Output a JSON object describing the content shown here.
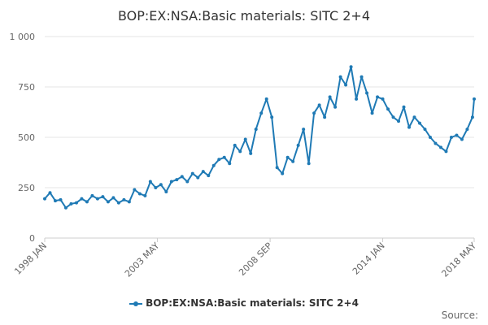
{
  "chart_data": {
    "type": "line",
    "title": "BOP:EX:NSA:Basic materials: SITC 2+4",
    "xlabel": "",
    "ylabel": "",
    "ylim": [
      0,
      1000
    ],
    "yticks": [
      "0",
      "250",
      "500",
      "750",
      "1 000"
    ],
    "ytick_values": [
      0,
      250,
      500,
      750,
      1000
    ],
    "xticks": [
      "1998 JAN",
      "2003 MAY",
      "2008 SEP",
      "2014 JAN",
      "2018 MAY"
    ],
    "x_range": [
      "1998-01",
      "2018-05"
    ],
    "series": [
      {
        "name": "BOP:EX:NSA:Basic materials: SITC 2+4",
        "color": "#1f7ab5",
        "x": [
          1998.0,
          1998.25,
          1998.5,
          1998.75,
          1999.0,
          1999.25,
          1999.5,
          1999.75,
          2000.0,
          2000.25,
          2000.5,
          2000.75,
          2001.0,
          2001.25,
          2001.5,
          2001.75,
          2002.0,
          2002.25,
          2002.5,
          2002.75,
          2003.0,
          2003.25,
          2003.5,
          2003.75,
          2004.0,
          2004.25,
          2004.5,
          2004.75,
          2005.0,
          2005.25,
          2005.5,
          2005.75,
          2006.0,
          2006.25,
          2006.5,
          2006.75,
          2007.0,
          2007.25,
          2007.5,
          2007.75,
          2008.0,
          2008.25,
          2008.5,
          2008.75,
          2009.0,
          2009.25,
          2009.5,
          2009.75,
          2010.0,
          2010.25,
          2010.5,
          2010.75,
          2011.0,
          2011.25,
          2011.5,
          2011.75,
          2012.0,
          2012.25,
          2012.5,
          2012.75,
          2013.0,
          2013.25,
          2013.5,
          2013.75,
          2014.0,
          2014.25,
          2014.5,
          2014.75,
          2015.0,
          2015.25,
          2015.5,
          2015.75,
          2016.0,
          2016.25,
          2016.5,
          2016.75,
          2017.0,
          2017.25,
          2017.5,
          2017.75,
          2018.0,
          2018.25,
          2018.33
        ],
        "values": [
          195,
          225,
          185,
          190,
          150,
          170,
          175,
          195,
          180,
          210,
          195,
          205,
          180,
          200,
          175,
          190,
          180,
          240,
          220,
          210,
          280,
          250,
          265,
          230,
          280,
          290,
          305,
          280,
          320,
          300,
          330,
          310,
          360,
          390,
          400,
          370,
          460,
          430,
          490,
          420,
          540,
          620,
          690,
          600,
          350,
          320,
          400,
          380,
          460,
          540,
          370,
          620,
          660,
          600,
          700,
          650,
          800,
          760,
          850,
          690,
          800,
          720,
          620,
          700,
          690,
          640,
          600,
          580,
          650,
          550,
          600,
          570,
          540,
          500,
          470,
          450,
          430,
          500,
          510,
          490,
          540,
          600,
          690
        ]
      }
    ]
  },
  "legend": {
    "label": "BOP:EX:NSA:Basic materials: SITC 2+4"
  },
  "source": {
    "label": "Source:"
  }
}
